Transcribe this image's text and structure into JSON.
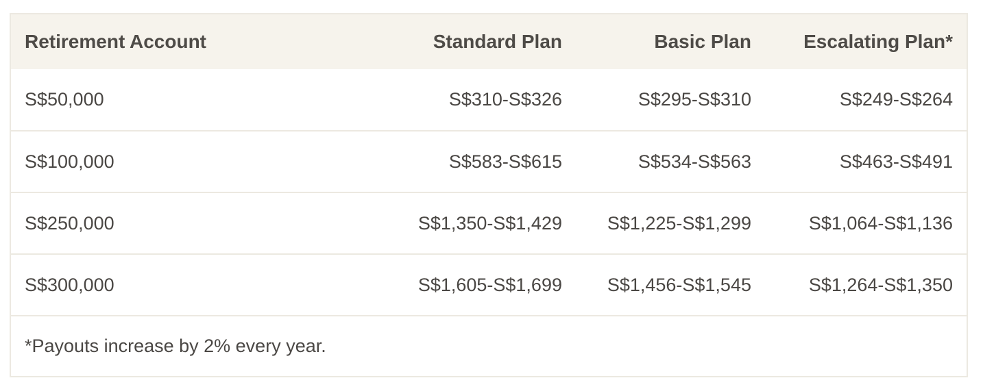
{
  "table": {
    "headers": [
      "Retirement Account",
      "Standard Plan",
      "Basic Plan",
      "Escalating Plan*"
    ],
    "rows": [
      [
        "S$50,000",
        "S$310-S$326",
        "S$295-S$310",
        "S$249-S$264"
      ],
      [
        "S$100,000",
        "S$583-S$615",
        "S$534-S$563",
        "S$463-S$491"
      ],
      [
        "S$250,000",
        "S$1,350-S$1,429",
        "S$1,225-S$1,299",
        "S$1,064-S$1,136"
      ],
      [
        "S$300,000",
        "S$1,605-S$1,699",
        "S$1,456-S$1,545",
        "S$1,264-S$1,350"
      ]
    ],
    "footnote": "*Payouts increase by 2% every year."
  },
  "colors": {
    "header_background": "#f6f3ec",
    "border": "#ece9e1",
    "text": "#4a4744"
  }
}
